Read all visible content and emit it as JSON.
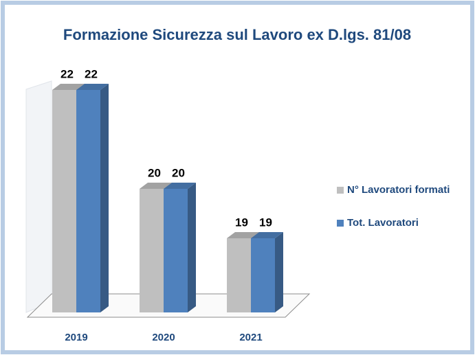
{
  "chart_data": {
    "type": "bar3d",
    "title": "Formazione Sicurezza sul Lavoro ex D.lgs. 81/08",
    "categories": [
      "2019",
      "2020",
      "2021"
    ],
    "series": [
      {
        "name": "N° Lavoratori formati",
        "color": "#bfbfbf",
        "values": [
          22,
          20,
          19
        ]
      },
      {
        "name": "Tot. Lavoratori",
        "color": "#4f81bd",
        "values": [
          22,
          20,
          19
        ]
      }
    ],
    "ylim": [
      17.5,
      22.5
    ],
    "legend": "right"
  }
}
